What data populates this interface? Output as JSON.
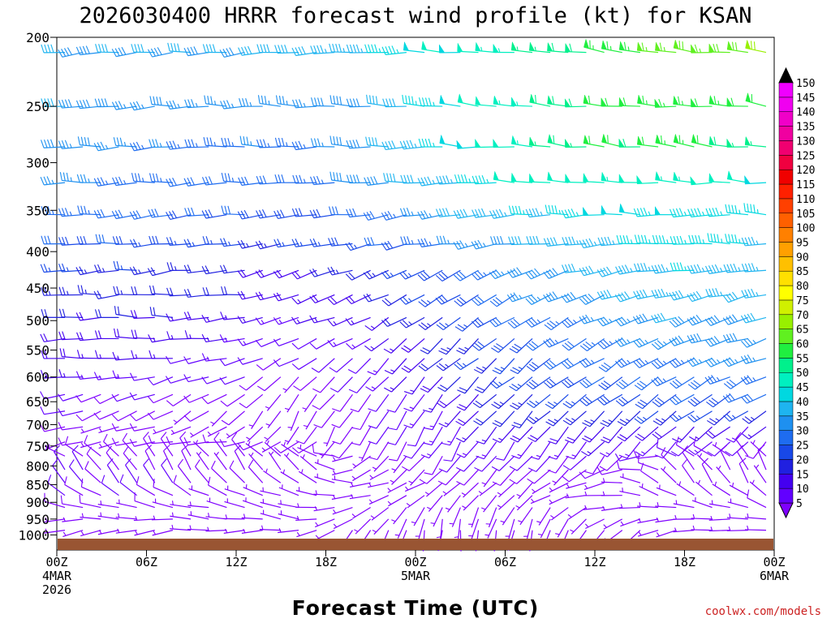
{
  "chart_data": {
    "type": "wind-barb time-height",
    "title": "2026030400 HRRR forecast wind profile (kt) for KSAN",
    "xlabel": "Forecast Time (UTC)",
    "ylabel": "",
    "credit": "coolwx.com/models",
    "y_axis": {
      "scale": "log-pressure",
      "ylim": [
        1050,
        200
      ],
      "ticks": [
        "200",
        "250",
        "300",
        "350",
        "400",
        "450",
        "500",
        "550",
        "600",
        "650",
        "700",
        "750",
        "800",
        "850",
        "900",
        "950",
        "1000"
      ]
    },
    "x_axis": {
      "range_hours": [
        0,
        48
      ],
      "ticks": [
        {
          "hour": 0,
          "lines": [
            "00Z",
            "4MAR",
            "2026"
          ]
        },
        {
          "hour": 6,
          "lines": [
            "06Z"
          ]
        },
        {
          "hour": 12,
          "lines": [
            "12Z"
          ]
        },
        {
          "hour": 18,
          "lines": [
            "18Z"
          ]
        },
        {
          "hour": 24,
          "lines": [
            "00Z",
            "5MAR"
          ]
        },
        {
          "hour": 30,
          "lines": [
            "06Z"
          ]
        },
        {
          "hour": 36,
          "lines": [
            "12Z"
          ]
        },
        {
          "hour": 42,
          "lines": [
            "18Z"
          ]
        },
        {
          "hour": 48,
          "lines": [
            "00Z",
            "6MAR"
          ]
        }
      ]
    },
    "colorbar": {
      "unit": "kt",
      "levels": [
        "5",
        "10",
        "15",
        "20",
        "25",
        "30",
        "35",
        "40",
        "45",
        "50",
        "55",
        "60",
        "65",
        "70",
        "75",
        "80",
        "85",
        "90",
        "95",
        "100",
        "105",
        "110",
        "115",
        "120",
        "125",
        "130",
        "135",
        "140",
        "145",
        "150"
      ],
      "colors": [
        "#7f00ff",
        "#6200ff",
        "#4400f0",
        "#2020e0",
        "#1848e8",
        "#1e6cf0",
        "#1e90f0",
        "#1eb4f0",
        "#00d8e0",
        "#00f0c0",
        "#00f08c",
        "#20ef40",
        "#60f020",
        "#98f000",
        "#d0f000",
        "#ffff00",
        "#ffe000",
        "#ffc000",
        "#ffa000",
        "#ff8000",
        "#ff6000",
        "#ff4000",
        "#ff2000",
        "#f00000",
        "#f00040",
        "#f00070",
        "#f000a0",
        "#f000c8",
        "#f000f0",
        "#f000ff"
      ]
    },
    "levels_hpa": [
      210,
      250,
      285,
      320,
      355,
      390,
      425,
      460,
      495,
      530,
      565,
      600,
      635,
      670,
      705,
      740,
      775,
      810,
      845,
      880,
      915,
      950,
      985
    ],
    "wind_samples": [
      {
        "hpa": 210,
        "speed_kt": [
          40,
          40,
          40,
          42,
          45,
          50,
          55,
          62,
          68,
          70
        ],
        "dir_deg": [
          265,
          265,
          265,
          268,
          270,
          272,
          275,
          276,
          277,
          278
        ]
      },
      {
        "hpa": 250,
        "speed_kt": [
          40,
          38,
          36,
          36,
          40,
          48,
          55,
          62,
          65,
          60
        ],
        "dir_deg": [
          268,
          268,
          268,
          270,
          272,
          274,
          275,
          276,
          276,
          276
        ]
      },
      {
        "hpa": 285,
        "speed_kt": [
          38,
          36,
          34,
          34,
          40,
          48,
          54,
          60,
          62,
          55
        ],
        "dir_deg": [
          268,
          268,
          268,
          268,
          270,
          272,
          274,
          275,
          275,
          275
        ]
      },
      {
        "hpa": 320,
        "speed_kt": [
          36,
          34,
          32,
          32,
          38,
          45,
          50,
          52,
          52,
          50
        ],
        "dir_deg": [
          268,
          268,
          268,
          268,
          268,
          270,
          272,
          272,
          272,
          272
        ]
      },
      {
        "hpa": 355,
        "speed_kt": [
          34,
          32,
          30,
          28,
          32,
          40,
          45,
          48,
          48,
          46
        ],
        "dir_deg": [
          265,
          265,
          265,
          260,
          262,
          266,
          268,
          270,
          270,
          270
        ]
      },
      {
        "hpa": 390,
        "speed_kt": [
          30,
          28,
          26,
          25,
          28,
          35,
          40,
          45,
          46,
          44
        ],
        "dir_deg": [
          265,
          265,
          264,
          260,
          258,
          262,
          265,
          268,
          268,
          268
        ]
      },
      {
        "hpa": 425,
        "speed_kt": [
          26,
          24,
          22,
          20,
          24,
          30,
          38,
          42,
          44,
          42
        ],
        "dir_deg": [
          265,
          265,
          262,
          255,
          250,
          245,
          250,
          258,
          260,
          262
        ]
      },
      {
        "hpa": 460,
        "speed_kt": [
          24,
          22,
          20,
          18,
          20,
          28,
          35,
          40,
          42,
          42
        ],
        "dir_deg": [
          268,
          268,
          265,
          255,
          245,
          240,
          245,
          250,
          255,
          258
        ]
      },
      {
        "hpa": 495,
        "speed_kt": [
          22,
          20,
          18,
          15,
          16,
          26,
          32,
          36,
          40,
          40
        ],
        "dir_deg": [
          270,
          270,
          266,
          255,
          240,
          235,
          240,
          245,
          250,
          255
        ]
      },
      {
        "hpa": 530,
        "speed_kt": [
          20,
          18,
          16,
          12,
          14,
          24,
          30,
          34,
          38,
          38
        ],
        "dir_deg": [
          270,
          268,
          265,
          250,
          235,
          230,
          235,
          240,
          248,
          252
        ]
      },
      {
        "hpa": 565,
        "speed_kt": [
          18,
          15,
          12,
          10,
          12,
          22,
          28,
          32,
          35,
          36
        ],
        "dir_deg": [
          268,
          265,
          258,
          240,
          225,
          228,
          232,
          238,
          245,
          250
        ]
      },
      {
        "hpa": 600,
        "speed_kt": [
          15,
          12,
          10,
          8,
          12,
          20,
          26,
          30,
          32,
          34
        ],
        "dir_deg": [
          265,
          258,
          250,
          230,
          220,
          225,
          230,
          235,
          240,
          245
        ]
      },
      {
        "hpa": 635,
        "speed_kt": [
          12,
          10,
          8,
          7,
          10,
          18,
          24,
          28,
          30,
          30
        ],
        "dir_deg": [
          260,
          250,
          240,
          220,
          215,
          222,
          228,
          232,
          238,
          240
        ]
      },
      {
        "hpa": 670,
        "speed_kt": [
          10,
          8,
          7,
          6,
          9,
          16,
          22,
          25,
          26,
          25
        ],
        "dir_deg": [
          255,
          245,
          230,
          210,
          210,
          218,
          225,
          230,
          235,
          235
        ]
      },
      {
        "hpa": 705,
        "speed_kt": [
          8,
          7,
          6,
          6,
          8,
          14,
          18,
          20,
          18,
          15
        ],
        "dir_deg": [
          260,
          255,
          240,
          210,
          205,
          215,
          222,
          225,
          230,
          230
        ]
      },
      {
        "hpa": 740,
        "speed_kt": [
          7,
          8,
          9,
          8,
          8,
          12,
          14,
          14,
          12,
          10
        ],
        "dir_deg": [
          250,
          260,
          265,
          240,
          210,
          212,
          218,
          220,
          225,
          225
        ]
      },
      {
        "hpa": 775,
        "speed_kt": [
          8,
          8,
          8,
          7,
          7,
          10,
          10,
          10,
          9,
          8
        ],
        "dir_deg": [
          300,
          320,
          320,
          310,
          230,
          215,
          218,
          222,
          300,
          320
        ]
      },
      {
        "hpa": 810,
        "speed_kt": [
          10,
          9,
          8,
          6,
          6,
          8,
          8,
          8,
          8,
          8
        ],
        "dir_deg": [
          320,
          330,
          330,
          320,
          240,
          220,
          220,
          240,
          320,
          330
        ]
      },
      {
        "hpa": 845,
        "speed_kt": [
          11,
          10,
          8,
          6,
          5,
          6,
          6,
          6,
          7,
          8
        ],
        "dir_deg": [
          320,
          320,
          315,
          310,
          260,
          230,
          230,
          260,
          320,
          330
        ]
      },
      {
        "hpa": 880,
        "speed_kt": [
          10,
          9,
          8,
          6,
          5,
          5,
          5,
          5,
          6,
          7
        ],
        "dir_deg": [
          300,
          300,
          295,
          290,
          250,
          220,
          230,
          270,
          300,
          310
        ]
      },
      {
        "hpa": 915,
        "speed_kt": [
          8,
          7,
          6,
          5,
          5,
          5,
          5,
          5,
          6,
          7
        ],
        "dir_deg": [
          280,
          280,
          285,
          280,
          230,
          200,
          210,
          260,
          280,
          290
        ]
      },
      {
        "hpa": 950,
        "speed_kt": [
          6,
          6,
          5,
          5,
          5,
          5,
          5,
          5,
          5,
          6
        ],
        "dir_deg": [
          270,
          270,
          280,
          280,
          220,
          190,
          200,
          240,
          270,
          280
        ]
      },
      {
        "hpa": 985,
        "speed_kt": [
          5,
          5,
          5,
          5,
          5,
          5,
          5,
          5,
          5,
          5
        ],
        "dir_deg": [
          260,
          260,
          270,
          270,
          200,
          180,
          190,
          220,
          260,
          270
        ]
      }
    ],
    "ground_color": "#995533",
    "grid": false,
    "legend": "right"
  }
}
